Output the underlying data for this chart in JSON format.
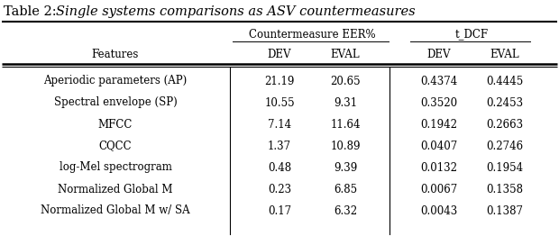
{
  "title_normal": "Table 2: ",
  "title_italic": "Single systems comparisons as ASV countermeasures",
  "group_header_1": "Countermeasure EER%",
  "group_header_2": "t_DCF",
  "col_headers": [
    "Features",
    "DEV",
    "EVAL",
    "DEV",
    "EVAL"
  ],
  "rows": [
    [
      "Aperiodic parameters (AP)",
      "21.19",
      "20.65",
      "0.4374",
      "0.4445"
    ],
    [
      "Spectral envelope (SP)",
      "10.55",
      "9.31",
      "0.3520",
      "0.2453"
    ],
    [
      "MFCC",
      "7.14",
      "11.64",
      "0.1942",
      "0.2663"
    ],
    [
      "CQCC",
      "1.37",
      "10.89",
      "0.0407",
      "0.2746"
    ],
    [
      "log-Mel spectrogram",
      "0.48",
      "9.39",
      "0.0132",
      "0.1954"
    ],
    [
      "Normalized Global M",
      "0.23",
      "6.85",
      "0.0067",
      "0.1358"
    ],
    [
      "Normalized Global M w/ SA",
      "0.17",
      "6.32",
      "0.0043",
      "0.1387"
    ]
  ],
  "background_color": "#ffffff",
  "text_color": "#000000",
  "font_size": 8.5,
  "title_font_size": 10.5
}
